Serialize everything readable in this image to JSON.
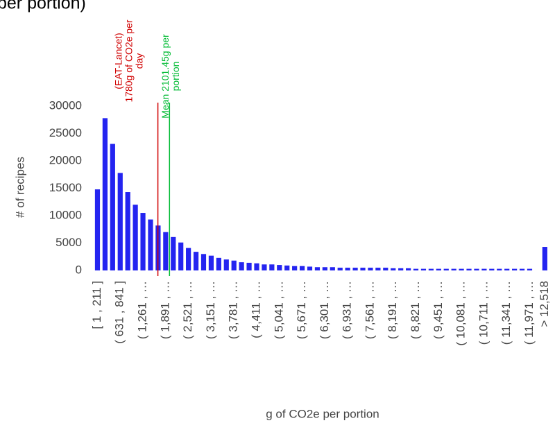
{
  "chart_data": {
    "type": "histogram",
    "title": "per portion)",
    "x_label": "g of CO2e per portion",
    "y_label": "# of recipes",
    "color": "#2424f0",
    "categories": [
      "[ 1 , 211 ]",
      null,
      null,
      "( 631 , 841 ]",
      null,
      null,
      "( 1,261 , …",
      null,
      null,
      "( 1,891 , …",
      null,
      null,
      "( 2,521 , …",
      null,
      null,
      "( 3,151 , …",
      null,
      null,
      "( 3,781 , …",
      null,
      null,
      "( 4,411 , …",
      null,
      null,
      "( 5,041 , …",
      null,
      null,
      "( 5,671 , …",
      null,
      null,
      "( 6,301 , …",
      null,
      null,
      "( 6,931 , …",
      null,
      null,
      "( 7,561 , …",
      null,
      null,
      "( 8,191 , …",
      null,
      null,
      "( 8,821 , …",
      null,
      null,
      "( 9,451 , …",
      null,
      null,
      "( 10,081 , …",
      null,
      null,
      "( 10,711 , …",
      null,
      null,
      "( 11,341 , …",
      null,
      null,
      "( 11,971 , …",
      null,
      "> 12,518"
    ],
    "values": [
      14800,
      27800,
      23100,
      17800,
      14300,
      12000,
      10500,
      9300,
      8200,
      7000,
      6100,
      5100,
      4100,
      3400,
      3000,
      2700,
      2300,
      2000,
      1800,
      1500,
      1400,
      1300,
      1100,
      1100,
      1000,
      900,
      800,
      800,
      700,
      600,
      600,
      600,
      500,
      500,
      500,
      500,
      500,
      500,
      500,
      400,
      400,
      400,
      300,
      300,
      300,
      300,
      300,
      300,
      300,
      300,
      300,
      300,
      300,
      300,
      300,
      300,
      300,
      300,
      0,
      4300
    ],
    "bin_width": 210,
    "bin_start": 1,
    "ylim": [
      0,
      30000
    ],
    "yticks": [
      0,
      5000,
      10000,
      15000,
      20000,
      25000,
      30000
    ],
    "annotations": [
      {
        "x": 1780,
        "color": "#d00000",
        "lines": [
          "(EAT-Lancet)",
          "1780g of CO2e per",
          "day"
        ]
      },
      {
        "x": 2101.45,
        "color": "#00bb33",
        "lines": [
          "Mean 2101.45g per",
          "portion"
        ]
      }
    ]
  }
}
